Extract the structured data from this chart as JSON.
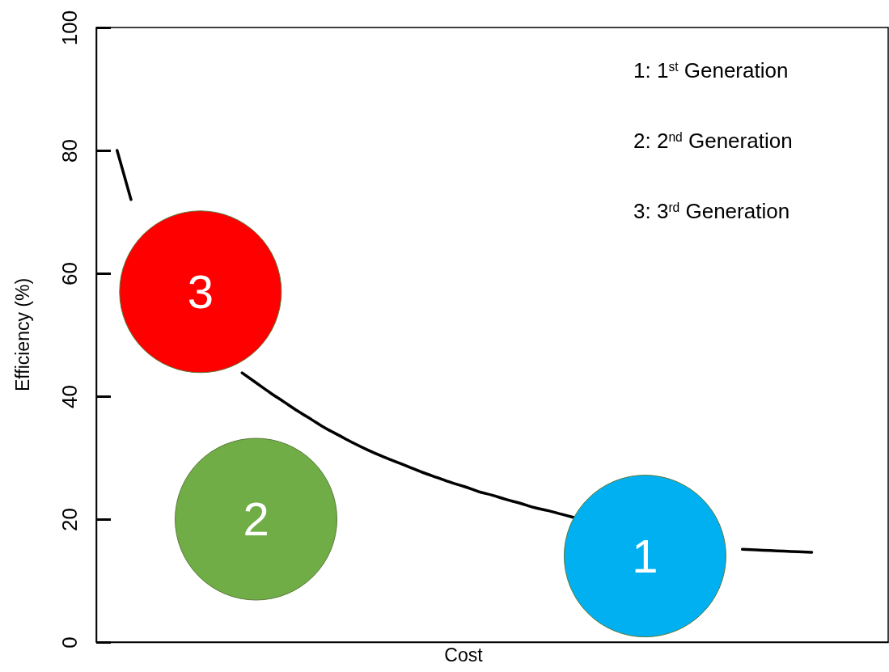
{
  "chart_data": {
    "type": "line",
    "xlabel": "Cost",
    "ylabel": "Efficiency (%)",
    "categories": [
      null,
      null,
      null,
      null,
      null,
      null,
      null,
      null,
      null,
      null,
      null,
      null,
      null,
      null,
      null,
      null,
      null,
      null,
      null,
      null,
      null,
      null,
      null,
      null,
      null,
      null,
      null,
      null,
      null,
      null,
      null,
      null,
      null,
      null,
      null,
      null,
      null,
      null,
      null,
      null,
      null,
      null,
      null,
      null,
      null,
      null,
      null,
      null,
      null,
      null,
      null,
      null,
      null,
      null,
      null,
      null,
      null
    ],
    "ylim": [
      0,
      100
    ],
    "yticks": [
      0,
      20,
      40,
      60,
      80,
      100
    ],
    "tick_labels": "y",
    "grid": false,
    "annotations": [
      "1: 1$^{st}$ Generation",
      "2: 2$^{nd}$ Generation",
      "3: 3$^{rd}$ Generation"
    ],
    "series": [
      {
        "color": "#000000",
        "values": [
          null,
          80,
          72,
          null,
          null,
          null,
          null,
          null,
          null,
          null,
          43.8,
          42.2,
          40.6,
          39.1,
          37.6,
          36.2,
          34.8,
          33.6,
          32.4,
          31.3,
          30.3,
          29.4,
          28.5,
          27.6,
          26.8,
          26.0,
          25.3,
          24.5,
          23.9,
          23.2,
          22.6,
          21.9,
          21.4,
          20.8,
          20.2,
          null,
          null,
          null,
          null,
          null,
          null,
          null,
          null,
          null,
          null,
          null,
          15.1,
          15.0,
          14.9,
          14.8,
          14.7,
          14.6,
          null,
          null,
          null,
          null,
          null
        ]
      },
      {
        "type": "scatter",
        "name": "1",
        "color": "#00b0f0",
        "values": [
          null,
          null,
          null,
          null,
          null,
          null,
          null,
          null,
          null,
          null,
          null,
          null,
          null,
          null,
          null,
          null,
          null,
          null,
          null,
          null,
          null,
          null,
          null,
          null,
          null,
          null,
          null,
          null,
          null,
          null,
          null,
          null,
          null,
          null,
          null,
          null,
          null,
          null,
          null,
          14,
          null,
          null,
          null,
          null,
          null,
          null,
          null,
          null,
          null,
          null,
          null,
          null,
          null,
          null,
          null,
          null,
          null
        ]
      },
      {
        "type": "scatter",
        "name": "2",
        "color": "#70ad47",
        "values": [
          null,
          null,
          null,
          null,
          null,
          null,
          null,
          null,
          null,
          null,
          null,
          20,
          null,
          null,
          null,
          null,
          null,
          null,
          null,
          null,
          null,
          null,
          null,
          null,
          null,
          null,
          null,
          null,
          null,
          null,
          null,
          null,
          null,
          null,
          null,
          null,
          null,
          null,
          null,
          null,
          null,
          null,
          null,
          null,
          null,
          null,
          null,
          null,
          null,
          null,
          null,
          null,
          null,
          null,
          null,
          null,
          null
        ]
      },
      {
        "type": "scatter",
        "name": "3",
        "color": "#ff0000",
        "values": [
          null,
          null,
          null,
          null,
          null,
          null,
          null,
          57,
          null,
          null,
          null,
          null,
          null,
          null,
          null,
          null,
          null,
          null,
          null,
          null,
          null,
          null,
          null,
          null,
          null,
          null,
          null,
          null,
          null,
          null,
          null,
          null,
          null,
          null,
          null,
          null,
          null,
          null,
          null,
          null,
          null,
          null,
          null,
          null,
          null,
          null,
          null,
          null,
          null,
          null,
          null,
          null,
          null,
          null,
          null,
          null,
          null
        ]
      }
    ]
  }
}
